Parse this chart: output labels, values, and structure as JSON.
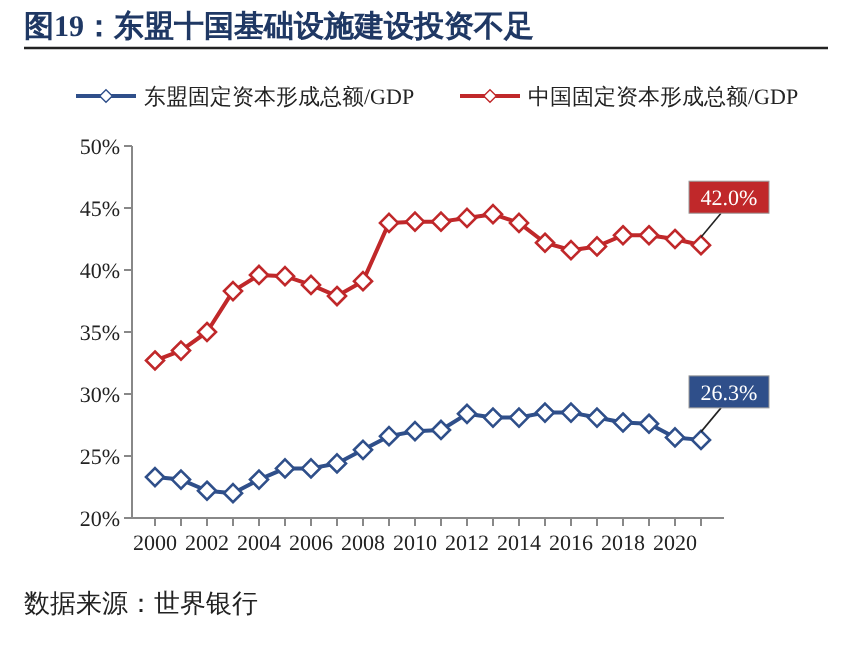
{
  "chart_data": {
    "type": "line",
    "title": "图19：东盟十国基础设施建设投资不足",
    "categories": [
      "2000",
      null,
      "2002",
      null,
      "2004",
      null,
      "2006",
      null,
      "2008",
      null,
      "2010",
      null,
      "2012",
      null,
      "2014",
      null,
      "2016",
      null,
      "2018",
      null,
      "2020",
      null
    ],
    "series": [
      {
        "name": "东盟固定资本形成总额/GDP",
        "color": "#2f4f8a",
        "values": [
          23.3,
          23.1,
          22.2,
          22.0,
          23.1,
          24.0,
          24.0,
          24.4,
          25.5,
          26.6,
          27.0,
          27.1,
          28.4,
          28.1,
          28.1,
          28.5,
          28.5,
          28.1,
          27.7,
          27.6,
          26.5,
          26.3
        ],
        "value_labels": [
          null,
          null,
          null,
          null,
          null,
          null,
          null,
          null,
          null,
          null,
          null,
          null,
          null,
          null,
          null,
          null,
          null,
          null,
          null,
          null,
          null,
          "26.3%"
        ]
      },
      {
        "name": "中国固定资本形成总额/GDP",
        "color": "#c0282a",
        "values": [
          32.7,
          33.5,
          35.0,
          38.3,
          39.6,
          39.5,
          38.8,
          37.9,
          39.1,
          43.8,
          43.9,
          43.9,
          44.2,
          44.5,
          43.8,
          42.2,
          41.6,
          41.9,
          42.8,
          42.8,
          42.5,
          42.0
        ],
        "value_labels": [
          null,
          null,
          null,
          null,
          null,
          null,
          null,
          null,
          null,
          null,
          null,
          null,
          null,
          null,
          null,
          null,
          null,
          null,
          null,
          null,
          null,
          "42.0%"
        ]
      }
    ],
    "ylim": [
      20,
      50
    ],
    "yticks": [
      {
        "value": 20,
        "label": "20%"
      },
      {
        "value": 25,
        "label": "25%"
      },
      {
        "value": 30,
        "label": "30%"
      },
      {
        "value": 35,
        "label": "35%"
      },
      {
        "value": 40,
        "label": "40%"
      },
      {
        "value": 45,
        "label": "45%"
      },
      {
        "value": 50,
        "label": "50%"
      }
    ],
    "legend": "top",
    "marker": "diamond",
    "grid": false,
    "annotations": [
      "数据来源：世界银行"
    ]
  }
}
